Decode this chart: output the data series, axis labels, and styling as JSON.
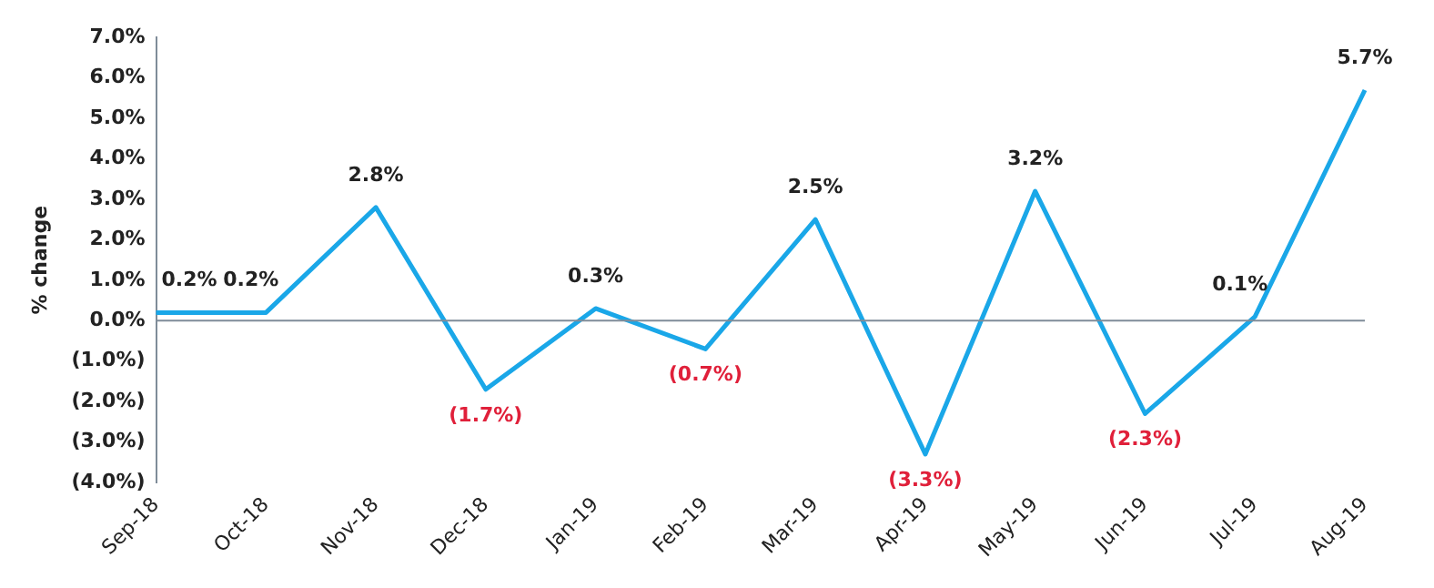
{
  "chart_data": {
    "type": "line",
    "ylabel": "% change",
    "categories": [
      "Sep-18",
      "Oct-18",
      "Nov-18",
      "Dec-18",
      "Jan-19",
      "Feb-19",
      "Mar-19",
      "Apr-19",
      "May-19",
      "Jun-19",
      "Jul-19",
      "Aug-19"
    ],
    "series": [
      {
        "color": "#1aa7e8",
        "values": [
          0.2,
          0.2,
          2.8,
          -1.7,
          0.3,
          -0.7,
          2.5,
          -3.3,
          3.2,
          -2.3,
          0.1,
          5.7
        ],
        "value_labels": [
          "0.2%",
          "0.2%",
          "2.8%",
          "(1.7%)",
          "0.3%",
          "(0.7%)",
          "2.5%",
          "(3.3%)",
          "3.2%",
          "(2.3%)",
          "0.1%",
          "5.7%"
        ]
      }
    ],
    "ylim": [
      -4,
      7
    ],
    "yticks": [
      {
        "value": -4,
        "label": "(4.0%)"
      },
      {
        "value": -3,
        "label": "(3.0%)"
      },
      {
        "value": -2,
        "label": "(2.0%)"
      },
      {
        "value": -1,
        "label": "(1.0%)"
      },
      {
        "value": 0,
        "label": "0.0%"
      },
      {
        "value": 1,
        "label": "1.0%"
      },
      {
        "value": 2,
        "label": "2.0%"
      },
      {
        "value": 3,
        "label": "3.0%"
      },
      {
        "value": 4,
        "label": "4.0%"
      },
      {
        "value": 5,
        "label": "5.0%"
      },
      {
        "value": 6,
        "label": "6.0%"
      },
      {
        "value": 7,
        "label": "7.0%"
      }
    ],
    "ref_lines": [
      {
        "axis": "y",
        "value": 0,
        "color": "#7f8c99"
      }
    ],
    "grid": false,
    "legend": false,
    "marker": "none",
    "line_style": "solid"
  }
}
